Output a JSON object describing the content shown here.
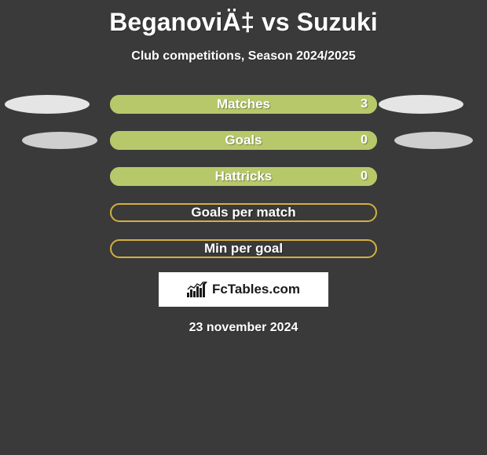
{
  "title": "BeganoviÄ‡ vs Suzuki",
  "subtitle": "Club competitions, Season 2024/2025",
  "date": "23 november 2024",
  "logo_text": "FcTables.com",
  "colors": {
    "background": "#3a3a3a",
    "text": "#ffffff",
    "ellipse_light": "#e5e5e5",
    "ellipse_dark": "#cfcfcf",
    "logo_bg": "#ffffff",
    "logo_text": "#1a1a1a"
  },
  "rows": [
    {
      "label": "Matches",
      "value": "3",
      "fill_color": "#b7c86a",
      "border_color": "#b7c86a",
      "fill_pct": 100,
      "show_value": true,
      "ellipse_left": "light",
      "ellipse_right": "light"
    },
    {
      "label": "Goals",
      "value": "0",
      "fill_color": "#b7c86a",
      "border_color": "#b7c86a",
      "fill_pct": 100,
      "show_value": true,
      "ellipse_left": "dark",
      "ellipse_right": "dark"
    },
    {
      "label": "Hattricks",
      "value": "0",
      "fill_color": "#b7c86a",
      "border_color": "#b7c86a",
      "fill_pct": 100,
      "show_value": true,
      "ellipse_left": null,
      "ellipse_right": null
    },
    {
      "label": "Goals per match",
      "value": "",
      "fill_color": "transparent",
      "border_color": "#d4b040",
      "fill_pct": 0,
      "show_value": false,
      "ellipse_left": null,
      "ellipse_right": null
    },
    {
      "label": "Min per goal",
      "value": "",
      "fill_color": "transparent",
      "border_color": "#d4b040",
      "fill_pct": 0,
      "show_value": false,
      "ellipse_left": null,
      "ellipse_right": null
    }
  ]
}
